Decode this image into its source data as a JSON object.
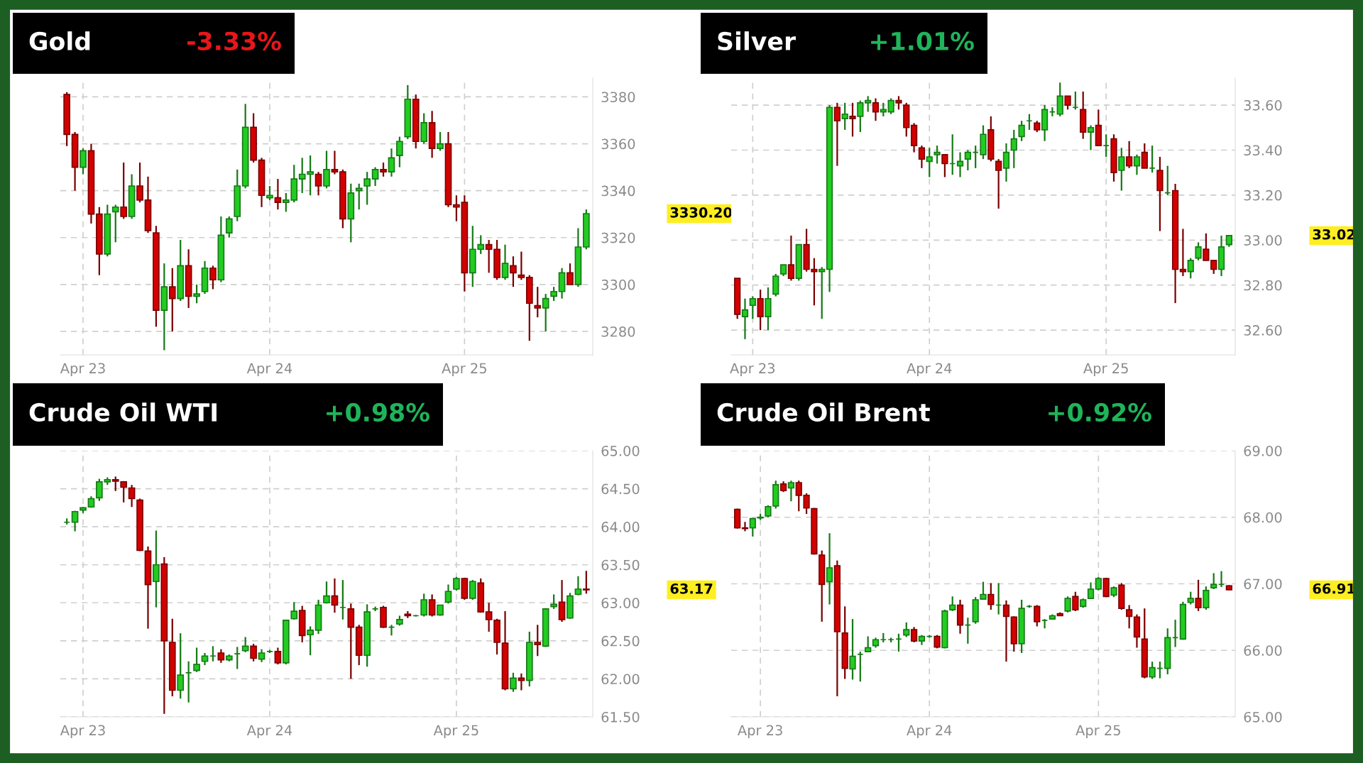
{
  "chart_data": [
    {
      "type": "candlestick",
      "title": "Gold",
      "subtitle": "-3.33%",
      "grid": true,
      "categories": [
        null,
        null,
        "Apr 23",
        null,
        null,
        null,
        null,
        null,
        null,
        null,
        null,
        null,
        null,
        null,
        null,
        null,
        null,
        null,
        null,
        null,
        null,
        null,
        null,
        null,
        null,
        "Apr 24",
        null,
        null,
        null,
        null,
        null,
        null,
        null,
        null,
        null,
        null,
        null,
        null,
        null,
        null,
        null,
        null,
        null,
        null,
        null,
        null,
        null,
        null,
        null,
        "Apr 25",
        null,
        null,
        null,
        null,
        null,
        null,
        null,
        null,
        null,
        null,
        null,
        null,
        null,
        null,
        null
      ],
      "ylim": [
        3270,
        3388
      ],
      "yticks": [
        3280,
        3300,
        3320,
        3340,
        3360,
        3380
      ],
      "annotations": [
        "3330.20"
      ],
      "ohlc": [
        [
          3381,
          3382,
          3359,
          3364
        ],
        [
          3364,
          3365,
          3340,
          3350
        ],
        [
          3350,
          3358,
          3347,
          3357
        ],
        [
          3357,
          3360,
          3326,
          3330
        ],
        [
          3330,
          3333,
          3304,
          3313
        ],
        [
          3313,
          3334,
          3312,
          3330
        ],
        [
          3331,
          3334,
          3318,
          3333
        ],
        [
          3333,
          3352,
          3328,
          3329
        ],
        [
          3329,
          3347,
          3328,
          3342
        ],
        [
          3342,
          3352,
          3335,
          3336
        ],
        [
          3336,
          3346,
          3322,
          3323
        ],
        [
          3322,
          3325,
          3282,
          3289
        ],
        [
          3289,
          3309,
          3272,
          3299
        ],
        [
          3299,
          3307,
          3280,
          3294
        ],
        [
          3294,
          3319,
          3293,
          3308
        ],
        [
          3308,
          3315,
          3290,
          3295
        ],
        [
          3295,
          3300,
          3292,
          3296
        ],
        [
          3297,
          3310,
          3296,
          3307
        ],
        [
          3307,
          3308,
          3298,
          3302
        ],
        [
          3302,
          3329,
          3301,
          3321
        ],
        [
          3322,
          3329,
          3320,
          3328
        ],
        [
          3329,
          3349,
          3327,
          3342
        ],
        [
          3342,
          3377,
          3341,
          3367
        ],
        [
          3367,
          3373,
          3352,
          3353
        ],
        [
          3353,
          3354,
          3333,
          3338
        ],
        [
          3337,
          3342,
          3336,
          3338
        ],
        [
          3337,
          3345,
          3332,
          3335
        ],
        [
          3335,
          3339,
          3331,
          3336
        ],
        [
          3336,
          3351,
          3335,
          3345
        ],
        [
          3345,
          3354,
          3339,
          3347
        ],
        [
          3347,
          3355,
          3338,
          3348
        ],
        [
          3347,
          3348,
          3338,
          3342
        ],
        [
          3342,
          3357,
          3341,
          3349
        ],
        [
          3349,
          3357,
          3347,
          3348
        ],
        [
          3348,
          3349,
          3324,
          3328
        ],
        [
          3328,
          3343,
          3318,
          3339
        ],
        [
          3340,
          3343,
          3332,
          3341
        ],
        [
          3342,
          3348,
          3334,
          3345
        ],
        [
          3345,
          3350,
          3342,
          3349
        ],
        [
          3349,
          3352,
          3346,
          3348
        ],
        [
          3348,
          3358,
          3346,
          3354
        ],
        [
          3355,
          3363,
          3350,
          3361
        ],
        [
          3363,
          3385,
          3362,
          3379
        ],
        [
          3379,
          3381,
          3358,
          3361
        ],
        [
          3361,
          3373,
          3360,
          3369
        ],
        [
          3369,
          3374,
          3354,
          3358
        ],
        [
          3358,
          3365,
          3357,
          3360
        ],
        [
          3360,
          3365,
          3333,
          3334
        ],
        [
          3334,
          3338,
          3327,
          3333
        ],
        [
          3335,
          3338,
          3297,
          3305
        ],
        [
          3305,
          3325,
          3299,
          3315
        ],
        [
          3315,
          3321,
          3313,
          3317
        ],
        [
          3317,
          3319,
          3305,
          3315
        ],
        [
          3315,
          3319,
          3302,
          3303
        ],
        [
          3303,
          3317,
          3302,
          3309
        ],
        [
          3308,
          3312,
          3299,
          3305
        ],
        [
          3304,
          3314,
          3302,
          3303
        ],
        [
          3303,
          3304,
          3276,
          3292
        ],
        [
          3291,
          3299,
          3286,
          3290
        ],
        [
          3290,
          3296,
          3280,
          3294
        ],
        [
          3295,
          3299,
          3293,
          3297
        ],
        [
          3297,
          3307,
          3294,
          3305
        ],
        [
          3305,
          3309,
          3300,
          3300
        ],
        [
          3300,
          3324,
          3299,
          3316
        ],
        [
          3316,
          3332,
          3315,
          3330.2
        ]
      ]
    },
    {
      "type": "candlestick",
      "title": "Silver",
      "subtitle": "+1.01%",
      "grid": true,
      "categories": [
        null,
        null,
        "Apr 23",
        null,
        null,
        null,
        null,
        null,
        null,
        null,
        null,
        null,
        null,
        null,
        null,
        null,
        null,
        null,
        null,
        null,
        null,
        null,
        null,
        null,
        null,
        "Apr 24",
        null,
        null,
        null,
        null,
        null,
        null,
        null,
        null,
        null,
        null,
        null,
        null,
        null,
        null,
        null,
        null,
        null,
        null,
        null,
        null,
        null,
        null,
        "Apr 25",
        null,
        null,
        null,
        null,
        null,
        null,
        null,
        null,
        null,
        null,
        null,
        null,
        null,
        null,
        null,
        null
      ],
      "ylim": [
        32.49,
        33.72
      ],
      "yticks": [
        {
          "value": 32.6,
          "label": "32.60"
        },
        {
          "value": 32.8,
          "label": "32.80"
        },
        {
          "value": 33.0,
          "label": "33.00"
        },
        {
          "value": 33.2,
          "label": "33.20"
        },
        {
          "value": 33.4,
          "label": "33.40"
        },
        {
          "value": 33.6,
          "label": "33.60"
        }
      ],
      "annotations": [
        "33.02"
      ],
      "ohlc": [
        [
          32.83,
          32.83,
          32.65,
          32.67
        ],
        [
          32.66,
          32.74,
          32.56,
          32.69
        ],
        [
          32.71,
          32.75,
          32.65,
          32.74
        ],
        [
          32.74,
          32.78,
          32.6,
          32.66
        ],
        [
          32.66,
          32.79,
          32.6,
          32.74
        ],
        [
          32.76,
          32.85,
          32.75,
          32.84
        ],
        [
          32.85,
          32.89,
          32.84,
          32.89
        ],
        [
          32.89,
          33.02,
          32.82,
          32.83
        ],
        [
          32.83,
          32.98,
          32.82,
          32.98
        ],
        [
          32.98,
          33.05,
          32.86,
          32.87
        ],
        [
          32.87,
          32.92,
          32.71,
          32.86
        ],
        [
          32.86,
          32.88,
          32.65,
          32.87
        ],
        [
          32.87,
          33.6,
          32.77,
          33.59
        ],
        [
          33.59,
          33.61,
          33.33,
          33.53
        ],
        [
          33.54,
          33.61,
          33.49,
          33.56
        ],
        [
          33.55,
          33.61,
          33.46,
          33.54
        ],
        [
          33.55,
          33.62,
          33.48,
          33.61
        ],
        [
          33.61,
          33.64,
          33.57,
          33.62
        ],
        [
          33.61,
          33.63,
          33.53,
          33.57
        ],
        [
          33.57,
          33.61,
          33.55,
          33.58
        ],
        [
          33.57,
          33.63,
          33.56,
          33.62
        ],
        [
          33.62,
          33.64,
          33.58,
          33.61
        ],
        [
          33.6,
          33.61,
          33.46,
          33.5
        ],
        [
          33.51,
          33.52,
          33.39,
          33.42
        ],
        [
          33.41,
          33.42,
          33.32,
          33.36
        ],
        [
          33.35,
          33.41,
          33.28,
          33.37
        ],
        [
          33.38,
          33.42,
          33.34,
          33.39
        ],
        [
          33.38,
          33.38,
          33.28,
          33.34
        ],
        [
          33.34,
          33.47,
          33.29,
          33.34
        ],
        [
          33.33,
          33.39,
          33.28,
          33.35
        ],
        [
          33.36,
          33.4,
          33.31,
          33.39
        ],
        [
          33.39,
          33.42,
          33.32,
          33.39
        ],
        [
          33.38,
          33.51,
          33.36,
          33.47
        ],
        [
          33.49,
          33.55,
          33.35,
          33.36
        ],
        [
          33.35,
          33.36,
          33.14,
          33.31
        ],
        [
          33.32,
          33.43,
          33.26,
          33.39
        ],
        [
          33.4,
          33.49,
          33.32,
          33.45
        ],
        [
          33.46,
          33.53,
          33.44,
          33.51
        ],
        [
          33.53,
          33.56,
          33.49,
          33.53
        ],
        [
          33.52,
          33.53,
          33.48,
          33.49
        ],
        [
          33.49,
          33.6,
          33.44,
          33.58
        ],
        [
          33.57,
          33.59,
          33.55,
          33.57
        ],
        [
          33.56,
          33.7,
          33.55,
          33.64
        ],
        [
          33.64,
          33.64,
          33.58,
          33.6
        ],
        [
          33.59,
          33.66,
          33.58,
          33.59
        ],
        [
          33.58,
          33.66,
          33.45,
          33.48
        ],
        [
          33.48,
          33.51,
          33.4,
          33.5
        ],
        [
          33.51,
          33.58,
          33.42,
          33.42
        ],
        [
          33.42,
          33.47,
          33.37,
          33.42
        ],
        [
          33.45,
          33.47,
          33.26,
          33.3
        ],
        [
          33.31,
          33.41,
          33.22,
          33.37
        ],
        [
          33.37,
          33.44,
          33.32,
          33.33
        ],
        [
          33.33,
          33.38,
          33.29,
          33.37
        ],
        [
          33.39,
          33.43,
          33.32,
          33.32
        ],
        [
          33.32,
          33.42,
          33.3,
          33.32
        ],
        [
          33.31,
          33.37,
          33.04,
          33.22
        ],
        [
          33.21,
          33.33,
          33.2,
          33.21
        ],
        [
          33.22,
          33.25,
          32.72,
          32.87
        ],
        [
          32.87,
          33.05,
          32.84,
          32.86
        ],
        [
          32.86,
          32.92,
          32.83,
          32.91
        ],
        [
          32.92,
          32.99,
          32.91,
          32.97
        ],
        [
          32.96,
          33.03,
          32.91,
          32.91
        ],
        [
          32.91,
          32.91,
          32.85,
          32.87
        ],
        [
          32.87,
          33.02,
          32.84,
          32.97
        ],
        [
          32.98,
          33.02,
          32.97,
          33.02
        ]
      ]
    },
    {
      "type": "candlestick",
      "title": "Crude Oil WTI",
      "subtitle": "+0.98%",
      "grid": true,
      "categories": [
        null,
        null,
        "Apr 23",
        null,
        null,
        null,
        null,
        null,
        null,
        null,
        null,
        null,
        null,
        null,
        null,
        null,
        null,
        null,
        null,
        null,
        null,
        null,
        null,
        null,
        null,
        "Apr 24",
        null,
        null,
        null,
        null,
        null,
        null,
        null,
        null,
        null,
        null,
        null,
        null,
        null,
        null,
        null,
        null,
        null,
        null,
        null,
        null,
        null,
        null,
        "Apr 25",
        null,
        null,
        null,
        null,
        null,
        null,
        null,
        null,
        null,
        null,
        null,
        null,
        null,
        null,
        null,
        null
      ],
      "ylim": [
        61.5,
        65.0
      ],
      "yticks": [
        {
          "value": 61.5,
          "label": "61.50"
        },
        {
          "value": 62.0,
          "label": "62.00"
        },
        {
          "value": 62.5,
          "label": "62.50"
        },
        {
          "value": 63.0,
          "label": "63.00"
        },
        {
          "value": 63.5,
          "label": "63.50"
        },
        {
          "value": 64.0,
          "label": "64.00"
        },
        {
          "value": 64.5,
          "label": "64.50"
        },
        {
          "value": 65.0,
          "label": "65.00"
        }
      ],
      "annotations": [
        "63.17"
      ],
      "ohlc": [
        [
          64.06,
          64.11,
          64.03,
          64.06
        ],
        [
          64.06,
          64.21,
          63.94,
          64.2
        ],
        [
          64.22,
          64.26,
          64.18,
          64.25
        ],
        [
          64.26,
          64.4,
          64.25,
          64.37
        ],
        [
          64.38,
          64.63,
          64.34,
          64.59
        ],
        [
          64.59,
          64.65,
          64.55,
          64.62
        ],
        [
          64.62,
          64.66,
          64.47,
          64.6
        ],
        [
          64.59,
          64.6,
          64.32,
          64.52
        ],
        [
          64.51,
          64.55,
          64.26,
          64.37
        ],
        [
          64.35,
          64.37,
          63.68,
          63.69
        ],
        [
          63.68,
          63.74,
          62.66,
          63.24
        ],
        [
          63.28,
          63.95,
          62.94,
          63.5
        ],
        [
          63.51,
          63.6,
          61.54,
          62.5
        ],
        [
          62.48,
          62.79,
          61.77,
          61.85
        ],
        [
          61.85,
          62.6,
          61.74,
          62.05
        ],
        [
          62.08,
          62.23,
          61.69,
          62.08
        ],
        [
          62.11,
          62.41,
          62.09,
          62.19
        ],
        [
          62.23,
          62.34,
          62.18,
          62.3
        ],
        [
          62.3,
          62.43,
          62.23,
          62.3
        ],
        [
          62.34,
          62.39,
          62.21,
          62.25
        ],
        [
          62.25,
          62.32,
          62.23,
          62.3
        ],
        [
          62.33,
          62.42,
          62.13,
          62.33
        ],
        [
          62.37,
          62.55,
          62.35,
          62.43
        ],
        [
          62.43,
          62.46,
          62.23,
          62.27
        ],
        [
          62.26,
          62.39,
          62.22,
          62.34
        ],
        [
          62.36,
          62.38,
          62.34,
          62.36
        ],
        [
          62.36,
          62.41,
          62.19,
          62.21
        ],
        [
          62.21,
          62.77,
          62.19,
          62.77
        ],
        [
          62.79,
          63.01,
          62.78,
          62.89
        ],
        [
          62.9,
          62.96,
          62.48,
          62.57
        ],
        [
          62.58,
          62.69,
          62.31,
          62.64
        ],
        [
          62.64,
          63.04,
          62.59,
          62.97
        ],
        [
          63.0,
          63.28,
          62.99,
          63.09
        ],
        [
          63.09,
          63.32,
          62.87,
          62.97
        ],
        [
          62.94,
          63.3,
          62.78,
          62.94
        ],
        [
          62.92,
          62.99,
          62.0,
          62.68
        ],
        [
          62.68,
          62.71,
          62.18,
          62.31
        ],
        [
          62.31,
          62.98,
          62.16,
          62.88
        ],
        [
          62.92,
          62.95,
          62.89,
          62.92
        ],
        [
          62.94,
          62.96,
          62.67,
          62.68
        ],
        [
          62.68,
          62.71,
          62.57,
          62.68
        ],
        [
          62.72,
          62.83,
          62.7,
          62.78
        ],
        [
          62.85,
          62.89,
          62.8,
          62.83
        ],
        [
          62.83,
          62.84,
          62.82,
          62.83
        ],
        [
          62.84,
          63.12,
          62.82,
          63.04
        ],
        [
          63.04,
          63.11,
          62.82,
          62.84
        ],
        [
          62.84,
          62.97,
          62.83,
          62.97
        ],
        [
          63.01,
          63.24,
          62.99,
          63.15
        ],
        [
          63.18,
          63.34,
          63.16,
          63.32
        ],
        [
          63.32,
          63.33,
          63.04,
          63.06
        ],
        [
          63.06,
          63.3,
          63.04,
          63.28
        ],
        [
          63.26,
          63.32,
          62.87,
          62.88
        ],
        [
          62.88,
          63.0,
          62.62,
          62.78
        ],
        [
          62.77,
          62.79,
          62.32,
          62.48
        ],
        [
          62.47,
          62.89,
          61.85,
          61.87
        ],
        [
          61.87,
          62.08,
          61.83,
          62.01
        ],
        [
          62.01,
          62.07,
          61.85,
          61.98
        ],
        [
          61.98,
          62.62,
          61.9,
          62.48
        ],
        [
          62.48,
          62.71,
          62.3,
          62.45
        ],
        [
          62.43,
          62.93,
          62.42,
          62.92
        ],
        [
          62.95,
          63.11,
          62.92,
          62.98
        ],
        [
          63.01,
          63.3,
          62.75,
          62.78
        ],
        [
          62.8,
          63.13,
          62.79,
          63.09
        ],
        [
          63.11,
          63.35,
          63.1,
          63.18
        ],
        [
          63.18,
          63.42,
          63.12,
          63.17
        ]
      ]
    },
    {
      "type": "candlestick",
      "title": "Crude Oil Brent",
      "subtitle": "+0.92%",
      "grid": true,
      "categories": [
        null,
        null,
        null,
        "Apr 23",
        null,
        null,
        null,
        null,
        null,
        null,
        null,
        null,
        null,
        null,
        null,
        null,
        null,
        null,
        null,
        null,
        null,
        null,
        null,
        null,
        null,
        "Apr 24",
        null,
        null,
        null,
        null,
        null,
        null,
        null,
        null,
        null,
        null,
        null,
        null,
        null,
        null,
        null,
        null,
        null,
        null,
        null,
        null,
        null,
        "Apr 25",
        null,
        null,
        null,
        null,
        null,
        null,
        null,
        null,
        null,
        null,
        null,
        null,
        null,
        null,
        null,
        null,
        null
      ],
      "ylim": [
        65.0,
        69.0
      ],
      "yticks": [
        {
          "value": 65.0,
          "label": "65.00"
        },
        {
          "value": 66.0,
          "label": "66.00"
        },
        {
          "value": 67.0,
          "label": "67.00"
        },
        {
          "value": 68.0,
          "label": "68.00"
        },
        {
          "value": 69.0,
          "label": "69.00"
        }
      ],
      "annotations": [
        "66.91"
      ],
      "ohlc": [
        [
          68.12,
          68.13,
          67.83,
          67.84
        ],
        [
          67.84,
          67.93,
          67.79,
          67.83
        ],
        [
          67.84,
          67.99,
          67.71,
          67.98
        ],
        [
          67.99,
          68.05,
          67.96,
          68.0
        ],
        [
          68.02,
          68.18,
          68.0,
          68.16
        ],
        [
          68.17,
          68.55,
          68.13,
          68.49
        ],
        [
          68.5,
          68.54,
          68.38,
          68.4
        ],
        [
          68.44,
          68.55,
          68.24,
          68.52
        ],
        [
          68.52,
          68.55,
          68.09,
          68.33
        ],
        [
          68.33,
          68.36,
          68.05,
          68.14
        ],
        [
          68.13,
          68.14,
          67.44,
          67.45
        ],
        [
          67.43,
          67.5,
          66.43,
          66.99
        ],
        [
          67.03,
          67.76,
          66.69,
          67.24
        ],
        [
          67.27,
          67.35,
          65.31,
          66.28
        ],
        [
          66.26,
          66.66,
          65.57,
          65.73
        ],
        [
          65.72,
          66.47,
          65.56,
          65.91
        ],
        [
          65.94,
          65.98,
          65.53,
          65.94
        ],
        [
          65.98,
          66.21,
          65.97,
          66.04
        ],
        [
          66.07,
          66.19,
          66.04,
          66.16
        ],
        [
          66.16,
          66.26,
          66.12,
          66.16
        ],
        [
          66.16,
          66.19,
          66.12,
          66.16
        ],
        [
          66.17,
          66.25,
          65.98,
          66.17
        ],
        [
          66.23,
          66.42,
          66.2,
          66.31
        ],
        [
          66.31,
          66.35,
          66.12,
          66.14
        ],
        [
          66.14,
          66.23,
          66.08,
          66.21
        ],
        [
          66.21,
          66.23,
          66.19,
          66.21
        ],
        [
          66.21,
          66.23,
          66.03,
          66.05
        ],
        [
          66.04,
          66.61,
          66.03,
          66.59
        ],
        [
          66.61,
          66.81,
          66.59,
          66.68
        ],
        [
          66.68,
          66.76,
          66.25,
          66.38
        ],
        [
          66.38,
          66.49,
          66.1,
          66.38
        ],
        [
          66.43,
          66.8,
          66.4,
          66.76
        ],
        [
          66.77,
          67.03,
          66.76,
          66.84
        ],
        [
          66.84,
          67.01,
          66.61,
          66.69
        ],
        [
          66.68,
          67.01,
          66.54,
          66.68
        ],
        [
          66.68,
          66.75,
          65.83,
          66.51
        ],
        [
          66.5,
          66.51,
          65.98,
          66.1
        ],
        [
          66.1,
          66.76,
          65.96,
          66.63
        ],
        [
          66.66,
          66.68,
          66.64,
          66.66
        ],
        [
          66.66,
          66.68,
          66.36,
          66.43
        ],
        [
          66.45,
          66.47,
          66.33,
          66.45
        ],
        [
          66.47,
          66.54,
          66.46,
          66.52
        ],
        [
          66.55,
          66.57,
          66.52,
          66.52
        ],
        [
          66.59,
          66.81,
          66.57,
          66.78
        ],
        [
          66.81,
          66.88,
          66.59,
          66.61
        ],
        [
          66.66,
          66.78,
          66.64,
          66.76
        ],
        [
          66.78,
          67.02,
          66.77,
          66.92
        ],
        [
          66.92,
          67.1,
          66.9,
          67.08
        ],
        [
          67.08,
          67.09,
          66.8,
          66.81
        ],
        [
          66.83,
          66.96,
          66.8,
          66.94
        ],
        [
          66.98,
          67.01,
          66.61,
          66.63
        ],
        [
          66.61,
          66.68,
          66.33,
          66.51
        ],
        [
          66.5,
          66.54,
          66.04,
          66.2
        ],
        [
          66.17,
          66.63,
          65.58,
          65.6
        ],
        [
          65.6,
          65.83,
          65.57,
          65.74
        ],
        [
          65.73,
          65.83,
          65.58,
          65.73
        ],
        [
          65.73,
          66.33,
          65.64,
          66.19
        ],
        [
          66.19,
          66.46,
          66.05,
          66.19
        ],
        [
          66.17,
          66.73,
          66.16,
          66.69
        ],
        [
          66.72,
          66.88,
          66.69,
          66.78
        ],
        [
          66.78,
          67.06,
          66.59,
          66.64
        ],
        [
          66.64,
          66.96,
          66.61,
          66.9
        ],
        [
          66.94,
          67.16,
          66.92,
          66.99
        ],
        [
          66.99,
          67.19,
          66.95,
          66.99
        ],
        [
          66.97,
          66.98,
          66.9,
          66.91
        ]
      ]
    }
  ]
}
